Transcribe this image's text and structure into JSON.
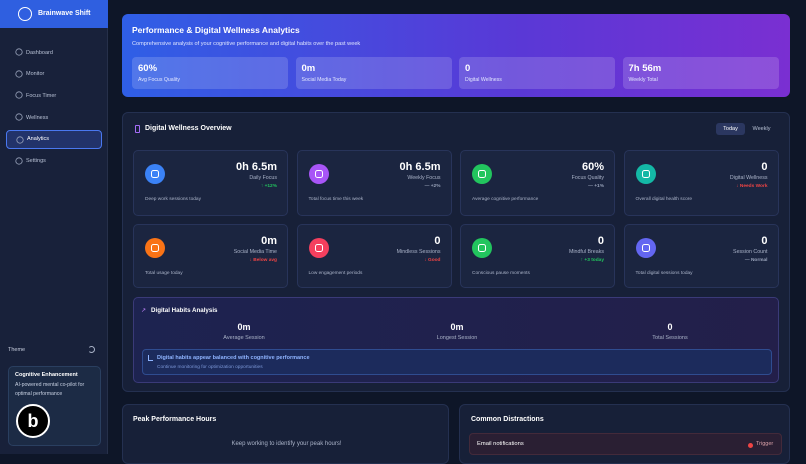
{
  "sidebar": {
    "app_name": "Brainwave Shift",
    "nav": [
      "Dashboard",
      "Monitor",
      "Focus Timer",
      "Wellness",
      "Analytics",
      "Settings"
    ],
    "theme_label": "Theme",
    "promo": {
      "title": "Cognitive Enhancement",
      "text": "AI-powered mental co-pilot for optimal performance",
      "badge": "b"
    }
  },
  "hero": {
    "title": "Performance & Digital Wellness Analytics",
    "subtitle": "Comprehensive analysis of your cognitive performance and digital habits over the past week",
    "stats": [
      {
        "value": "60%",
        "label": "Avg Focus Quality"
      },
      {
        "value": "0m",
        "label": "Social Media Today"
      },
      {
        "value": "0",
        "label": "Digital Wellness"
      },
      {
        "value": "7h 56m",
        "label": "Weekly Total"
      }
    ]
  },
  "overview": {
    "title": "Digital Wellness Overview",
    "tabs": [
      "Today",
      "Weekly"
    ],
    "cards": [
      {
        "value": "0h 6.5m",
        "label": "Daily Focus",
        "change": "↑ +12%",
        "description": "Deep work sessions today"
      },
      {
        "value": "0h 6.5m",
        "label": "Weekly Focus",
        "change": "— +2%",
        "description": "Total focus time this week"
      },
      {
        "value": "60%",
        "label": "Focus Quality",
        "change": "— +1%",
        "description": "Average cognitive performance"
      },
      {
        "value": "0",
        "label": "Digital Wellness",
        "change": "↓ Needs Work",
        "description": "Overall digital health score"
      },
      {
        "value": "0m",
        "label": "Social Media Time",
        "change": "↓ Below avg",
        "description": "Total usage today"
      },
      {
        "value": "0",
        "label": "Mindless Sessions",
        "change": "↓ Good",
        "description": "Low engagement periods"
      },
      {
        "value": "0",
        "label": "Mindful Breaks",
        "change": "↑ +3 today",
        "description": "Conscious pause moments"
      },
      {
        "value": "0",
        "label": "Session Count",
        "change": "— Normal",
        "description": "Total digital sessions today"
      }
    ],
    "habits": {
      "title": "Digital Habits Analysis",
      "stats": [
        {
          "value": "0m",
          "label": "Average Session"
        },
        {
          "value": "0m",
          "label": "Longest Session"
        },
        {
          "value": "0",
          "label": "Total Sessions"
        }
      ],
      "info_title": "Digital habits appear balanced with cognitive performance",
      "info_text": "Continue monitoring for optimization opportunities"
    }
  },
  "peak": {
    "title": "Peak Performance Hours",
    "text": "Keep working to identify your peak hours!"
  },
  "distractions": {
    "title": "Common Distractions",
    "items": [
      {
        "name": "Email notifications",
        "tag": "Trigger"
      }
    ]
  }
}
